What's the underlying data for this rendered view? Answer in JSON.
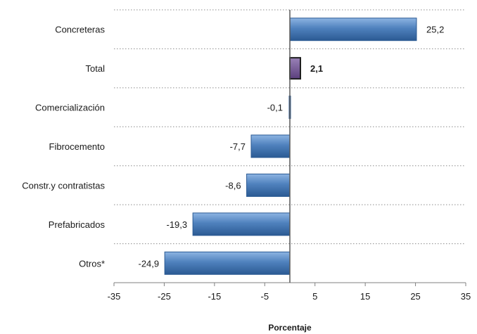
{
  "chart_data": {
    "type": "bar",
    "orientation": "horizontal",
    "categories": [
      "Concreteras",
      "Total",
      "Comercialización",
      "Fibrocemento",
      "Constr.y contratistas",
      "Prefabricados",
      "Otros*"
    ],
    "values": [
      25.2,
      2.1,
      -0.1,
      -7.7,
      -8.6,
      -19.3,
      -24.9
    ],
    "value_labels": [
      "25,2",
      "2,1",
      "-0,1",
      "-7,7",
      "-8,6",
      "-19,3",
      "-24,9"
    ],
    "highlight_category": "Total",
    "xlabel": "Porcentaje",
    "ylabel": "",
    "xlim": [
      -35,
      35
    ],
    "x_ticks": [
      -35,
      -25,
      -15,
      -5,
      5,
      15,
      25,
      35
    ],
    "grid": "horizontal dotted",
    "colors": {
      "bar": "#4f81bd",
      "bar_dark": "#2b5a93",
      "bar_light": "#8db4e2",
      "highlight": "#6a4c8c",
      "highlight_light": "#9a82b8",
      "outline": "#1e1e1e"
    }
  }
}
